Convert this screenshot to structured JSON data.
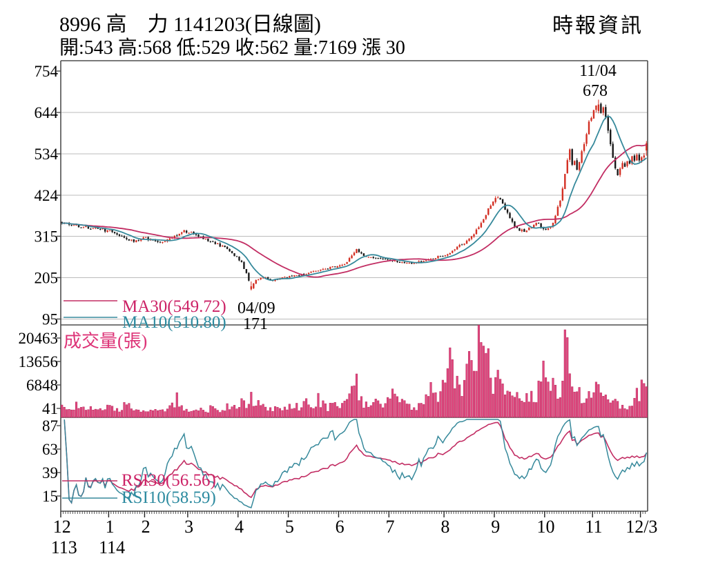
{
  "header": {
    "title": "8996 高　力 1141203(日線圖)",
    "subtitle": "開:543 高:568 低:529 收:562 量:7169 漲 30",
    "provider": "時報資訊"
  },
  "colors": {
    "pink_line": "#c22d63",
    "pink_text": "#cc2266",
    "teal_line": "#36899b",
    "teal_text": "#2d8ba0",
    "vol_fill": "#e0487f",
    "vol_stroke": "#b62458",
    "vol_label": "#dd3377",
    "candle_up": "#d32f23",
    "candle_down": "#191919",
    "grid": "#bbbbbb",
    "frame": "#4d4d4d",
    "text": "#000000"
  },
  "chart_data": {
    "type": "candlestick+volume+rsi",
    "title": "8996 高力 daily chart 1141203",
    "price_axis": {
      "ticks": [
        754,
        644,
        534,
        424,
        315,
        205,
        95
      ]
    },
    "volume_axis": {
      "ticks": [
        20463,
        13656,
        6848,
        41
      ],
      "label": "成交量(張)",
      "max": 20463
    },
    "rsi_axis": {
      "ticks": [
        87,
        63,
        39,
        15
      ]
    },
    "x_axis": {
      "total_days": 245,
      "month_labels": [
        "12",
        "1",
        "2",
        "3",
        "4",
        "5",
        "6",
        "7",
        "8",
        "9",
        "10",
        "11",
        "12/3"
      ],
      "month_start_days": [
        0,
        20,
        35,
        53,
        74,
        95,
        116,
        137,
        160,
        181,
        202,
        222,
        242
      ],
      "year_labels": [
        {
          "text": "113",
          "day": 0
        },
        {
          "text": "114",
          "day": 20
        }
      ]
    },
    "legend": {
      "ma30": "MA30(549.72)",
      "ma10": "MA10(510.80)",
      "rsi30": "RSI30(56.56)",
      "rsi10": "RSI10(58.59)"
    },
    "annotations": {
      "low": {
        "date": "04/09",
        "price": "171",
        "day": 79
      },
      "high": {
        "date": "11/04",
        "price": "678",
        "day": 224
      }
    },
    "special": {
      "low_day": 79,
      "low_value": 171,
      "low_open": 174,
      "low_close": 182,
      "high_day": 224,
      "high_value": 678,
      "high_open": 648,
      "high_close": 665,
      "last_day": {
        "open": 543,
        "high": 568,
        "low": 529,
        "close": 562,
        "volume": 7169
      }
    },
    "ma_periods": [
      10,
      30
    ],
    "rsi_periods": [
      10,
      30
    ],
    "close_anchors": [
      [
        0,
        352
      ],
      [
        6,
        344
      ],
      [
        12,
        337
      ],
      [
        19,
        330
      ],
      [
        23,
        322
      ],
      [
        27,
        308
      ],
      [
        31,
        302
      ],
      [
        34,
        311
      ],
      [
        38,
        305
      ],
      [
        42,
        297
      ],
      [
        47,
        315
      ],
      [
        51,
        329
      ],
      [
        55,
        322
      ],
      [
        60,
        306
      ],
      [
        65,
        294
      ],
      [
        69,
        280
      ],
      [
        72,
        265
      ],
      [
        75,
        246
      ],
      [
        77,
        215
      ],
      [
        79,
        178
      ],
      [
        81,
        198
      ],
      [
        84,
        207
      ],
      [
        88,
        199
      ],
      [
        93,
        205
      ],
      [
        99,
        212
      ],
      [
        104,
        220
      ],
      [
        109,
        228
      ],
      [
        114,
        234
      ],
      [
        118,
        242
      ],
      [
        121,
        262
      ],
      [
        123,
        280
      ],
      [
        125,
        268
      ],
      [
        128,
        258
      ],
      [
        132,
        254
      ],
      [
        137,
        252
      ],
      [
        141,
        247
      ],
      [
        146,
        242
      ],
      [
        151,
        249
      ],
      [
        155,
        257
      ],
      [
        158,
        262
      ],
      [
        161,
        267
      ],
      [
        164,
        280
      ],
      [
        167,
        294
      ],
      [
        170,
        308
      ],
      [
        173,
        330
      ],
      [
        176,
        360
      ],
      [
        178,
        390
      ],
      [
        180,
        408
      ],
      [
        182,
        418
      ],
      [
        184,
        400
      ],
      [
        186,
        375
      ],
      [
        188,
        350
      ],
      [
        190,
        334
      ],
      [
        193,
        330
      ],
      [
        196,
        340
      ],
      [
        198,
        352
      ],
      [
        200,
        342
      ],
      [
        202,
        330
      ],
      [
        204,
        342
      ],
      [
        205,
        352
      ],
      [
        206,
        368
      ],
      [
        207,
        390
      ],
      [
        208,
        412
      ],
      [
        209,
        445
      ],
      [
        210,
        480
      ],
      [
        211,
        520
      ],
      [
        212,
        540
      ],
      [
        213,
        505
      ],
      [
        214,
        520
      ],
      [
        215,
        495
      ],
      [
        216,
        515
      ],
      [
        217,
        540
      ],
      [
        218,
        565
      ],
      [
        219,
        590
      ],
      [
        220,
        615
      ],
      [
        221,
        635
      ],
      [
        222,
        650
      ],
      [
        223,
        660
      ],
      [
        224,
        665
      ],
      [
        225,
        645
      ],
      [
        226,
        658
      ],
      [
        227,
        630
      ],
      [
        228,
        590
      ],
      [
        229,
        555
      ],
      [
        230,
        525
      ],
      [
        231,
        500
      ],
      [
        232,
        480
      ],
      [
        233,
        498
      ],
      [
        234,
        512
      ],
      [
        235,
        502
      ],
      [
        236,
        518
      ],
      [
        237,
        508
      ],
      [
        238,
        522
      ],
      [
        239,
        512
      ],
      [
        240,
        526
      ],
      [
        241,
        518
      ],
      [
        242,
        528
      ],
      [
        243,
        532
      ],
      [
        244,
        562
      ]
    ],
    "volume_anchors": [
      [
        0,
        2600
      ],
      [
        3,
        1700
      ],
      [
        6,
        2900
      ],
      [
        9,
        1900
      ],
      [
        12,
        2500
      ],
      [
        15,
        1400
      ],
      [
        18,
        2100
      ],
      [
        21,
        2700
      ],
      [
        24,
        1600
      ],
      [
        27,
        3300
      ],
      [
        30,
        1900
      ],
      [
        33,
        1100
      ],
      [
        36,
        1500
      ],
      [
        39,
        2400
      ],
      [
        42,
        1300
      ],
      [
        45,
        2100
      ],
      [
        48,
        4300
      ],
      [
        51,
        2300
      ],
      [
        54,
        1500
      ],
      [
        57,
        2000
      ],
      [
        60,
        1300
      ],
      [
        63,
        2500
      ],
      [
        66,
        1700
      ],
      [
        69,
        2700
      ],
      [
        72,
        2100
      ],
      [
        75,
        3400
      ],
      [
        77,
        2500
      ],
      [
        79,
        4600
      ],
      [
        81,
        3200
      ],
      [
        84,
        2300
      ],
      [
        87,
        1800
      ],
      [
        90,
        2600
      ],
      [
        93,
        2100
      ],
      [
        96,
        2800
      ],
      [
        99,
        2300
      ],
      [
        102,
        3700
      ],
      [
        105,
        2200
      ],
      [
        107,
        4100
      ],
      [
        109,
        2900
      ],
      [
        111,
        2300
      ],
      [
        114,
        3100
      ],
      [
        117,
        2600
      ],
      [
        119,
        4200
      ],
      [
        121,
        6800
      ],
      [
        123,
        13400
      ],
      [
        124,
        5200
      ],
      [
        126,
        3400
      ],
      [
        128,
        2700
      ],
      [
        131,
        3500
      ],
      [
        134,
        2900
      ],
      [
        137,
        4000
      ],
      [
        139,
        6900
      ],
      [
        141,
        3400
      ],
      [
        144,
        2600
      ],
      [
        147,
        2200
      ],
      [
        150,
        2700
      ],
      [
        152,
        3800
      ],
      [
        154,
        6500
      ],
      [
        156,
        4400
      ],
      [
        158,
        5200
      ],
      [
        160,
        7800
      ],
      [
        162,
        12200
      ],
      [
        164,
        9300
      ],
      [
        166,
        6800
      ],
      [
        168,
        8300
      ],
      [
        170,
        14100
      ],
      [
        172,
        12800
      ],
      [
        174,
        15800
      ],
      [
        176,
        13200
      ],
      [
        178,
        14600
      ],
      [
        180,
        8400
      ],
      [
        182,
        12400
      ],
      [
        184,
        7600
      ],
      [
        186,
        5300
      ],
      [
        188,
        4200
      ],
      [
        190,
        6400
      ],
      [
        192,
        3600
      ],
      [
        194,
        5800
      ],
      [
        196,
        4400
      ],
      [
        198,
        3600
      ],
      [
        200,
        9500
      ],
      [
        201,
        14000
      ],
      [
        202,
        11500
      ],
      [
        203,
        12800
      ],
      [
        204,
        9000
      ],
      [
        205,
        7000
      ],
      [
        206,
        8200
      ],
      [
        207,
        6000
      ],
      [
        208,
        7500
      ],
      [
        210,
        20463
      ],
      [
        211,
        18800
      ],
      [
        212,
        7600
      ],
      [
        214,
        5400
      ],
      [
        216,
        6200
      ],
      [
        218,
        4400
      ],
      [
        220,
        5000
      ],
      [
        222,
        6800
      ],
      [
        223,
        8800
      ],
      [
        224,
        7000
      ],
      [
        226,
        5400
      ],
      [
        228,
        4000
      ],
      [
        230,
        4800
      ],
      [
        232,
        3300
      ],
      [
        234,
        2500
      ],
      [
        236,
        1900
      ],
      [
        238,
        2300
      ],
      [
        240,
        5600
      ],
      [
        242,
        6400
      ],
      [
        244,
        7169
      ]
    ]
  }
}
